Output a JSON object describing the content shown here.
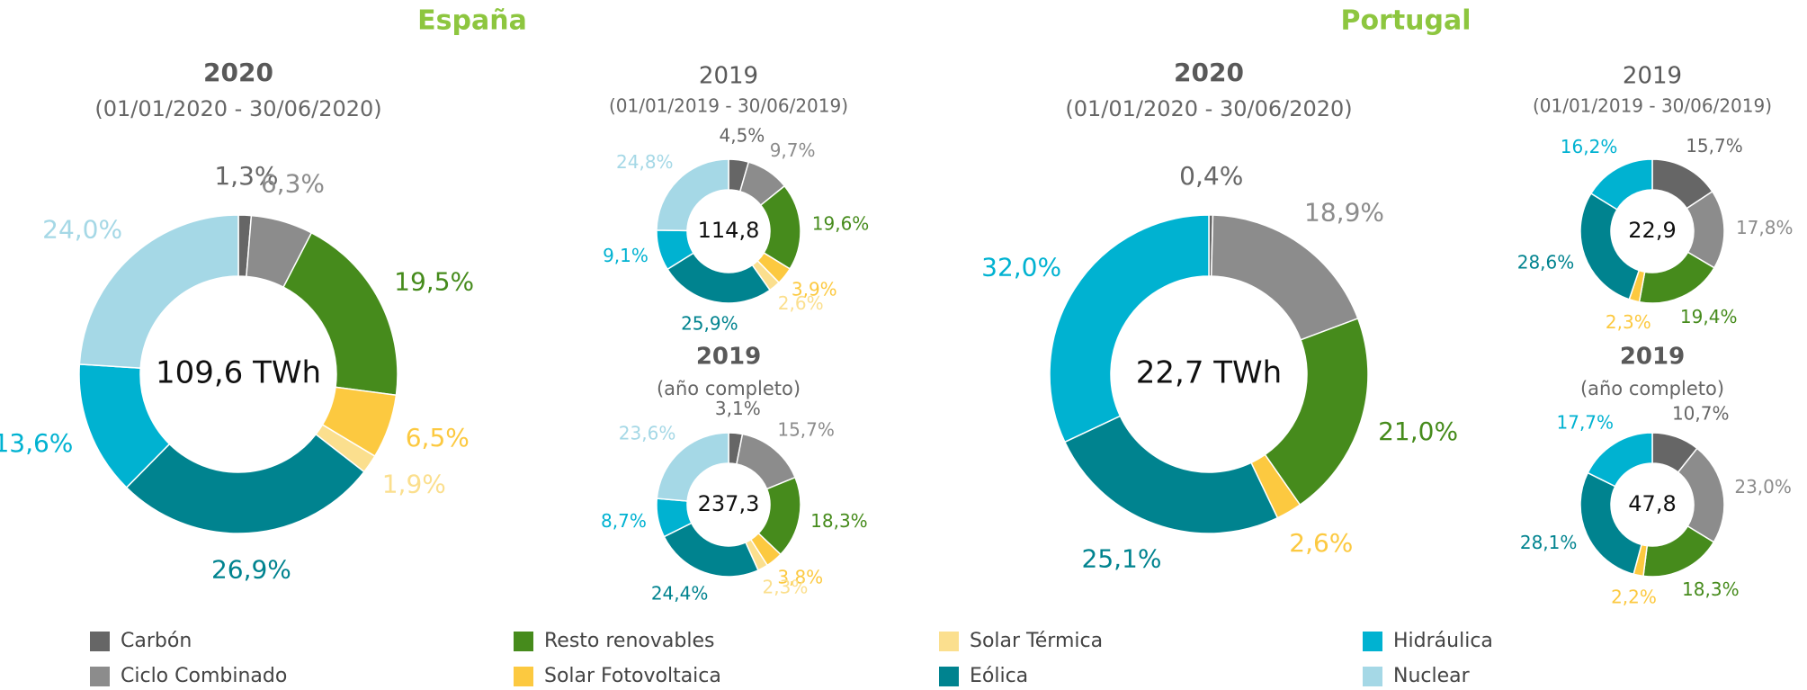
{
  "sections": [
    "España",
    "Portugal"
  ],
  "legend": {
    "categories": [
      "Carbón",
      "Ciclo Combinado",
      "Resto renovables",
      "Solar Fotovoltaica",
      "Solar Térmica",
      "Eólica",
      "Hidráulica",
      "Nuclear"
    ],
    "colors": [
      "#666666",
      "#8c8c8c",
      "#468b1c",
      "#fcc940",
      "#fbdf8e",
      "#00838f",
      "#00b2d1",
      "#a5d8e6"
    ]
  },
  "chart_data": [
    {
      "type": "donut",
      "title": "2020",
      "subtitle": "(01/01/2020 - 30/06/2020)",
      "center_label": "109,6 TWh",
      "values": [
        1.3,
        6.3,
        19.5,
        6.5,
        1.9,
        26.9,
        13.6,
        24.0
      ],
      "value_labels": [
        "1,3%",
        "6,3%",
        "19,5%",
        "6,5%",
        "1,9%",
        "26,9%",
        "13,6%",
        "24,0%"
      ]
    },
    {
      "type": "donut",
      "title": "2019",
      "subtitle": "(01/01/2019 - 30/06/2019)",
      "center_label": "114,8",
      "values": [
        4.5,
        9.7,
        19.6,
        3.9,
        2.6,
        25.9,
        9.1,
        24.8
      ],
      "value_labels": [
        "4,5%",
        "9,7%",
        "19,6%",
        "3,9%",
        "2,6%",
        "25,9%",
        "9,1%",
        "24,8%"
      ]
    },
    {
      "type": "donut",
      "title": "2019",
      "subtitle": "(año completo)",
      "center_label": "237,3",
      "values": [
        3.1,
        15.7,
        18.3,
        3.8,
        2.3,
        24.4,
        8.7,
        23.6
      ],
      "value_labels": [
        "3,1%",
        "15,7%",
        "18,3%",
        "3,8%",
        "2,3%",
        "24,4%",
        "8,7%",
        "23,6%"
      ]
    },
    {
      "type": "donut",
      "title": "2020",
      "subtitle": "(01/01/2020 - 30/06/2020)",
      "center_label": "22,7 TWh",
      "values": [
        0.4,
        18.9,
        21.0,
        2.6,
        null,
        25.1,
        32.0,
        null
      ],
      "value_labels": [
        "0,4%",
        "18,9%",
        "21,0%",
        "2,6%",
        null,
        "25,1%",
        "32,0%",
        null
      ]
    },
    {
      "type": "donut",
      "title": "2019",
      "subtitle": "(01/01/2019 - 30/06/2019)",
      "center_label": "22,9",
      "values": [
        15.7,
        17.8,
        19.4,
        2.3,
        null,
        28.6,
        16.2,
        null
      ],
      "value_labels": [
        "15,7%",
        "17,8%",
        "19,4%",
        "2,3%",
        null,
        "28,6%",
        "16,2%",
        null
      ]
    },
    {
      "type": "donut",
      "title": "2019",
      "subtitle": "(año completo)",
      "center_label": "47,8",
      "values": [
        10.7,
        23.0,
        18.3,
        2.2,
        null,
        28.1,
        17.7,
        null
      ],
      "value_labels": [
        "10,7%",
        "23,0%",
        "18,3%",
        "2,2%",
        null,
        "28,1%",
        "17,7%",
        null
      ]
    }
  ]
}
